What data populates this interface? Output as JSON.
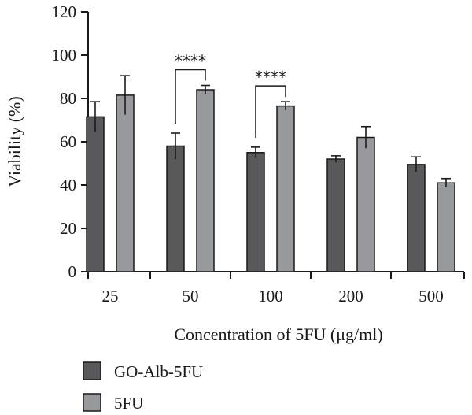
{
  "chart_data": {
    "type": "bar",
    "title": "",
    "xlabel": "Concentration of 5FU (μg/ml)",
    "ylabel": "Viability (%)",
    "ylim": [
      0,
      120
    ],
    "yticks": [
      0,
      20,
      40,
      60,
      80,
      100,
      120
    ],
    "categories": [
      "25",
      "50",
      "100",
      "200",
      "500"
    ],
    "series": [
      {
        "name": "GO-Alb-5FU",
        "color": "#59595b",
        "values": [
          71.5,
          58,
          55,
          52,
          49.5
        ],
        "errors": [
          7,
          6,
          2.5,
          1.5,
          3.5
        ]
      },
      {
        "name": "5FU",
        "color": "#98999c",
        "values": [
          81.5,
          84,
          76.5,
          62,
          41
        ],
        "errors": [
          9,
          2,
          2,
          5,
          2
        ]
      }
    ],
    "annotations": [
      {
        "category": "50",
        "text": "****"
      },
      {
        "category": "100",
        "text": "****"
      }
    ],
    "legend_position": "bottom-left",
    "grid": false
  }
}
